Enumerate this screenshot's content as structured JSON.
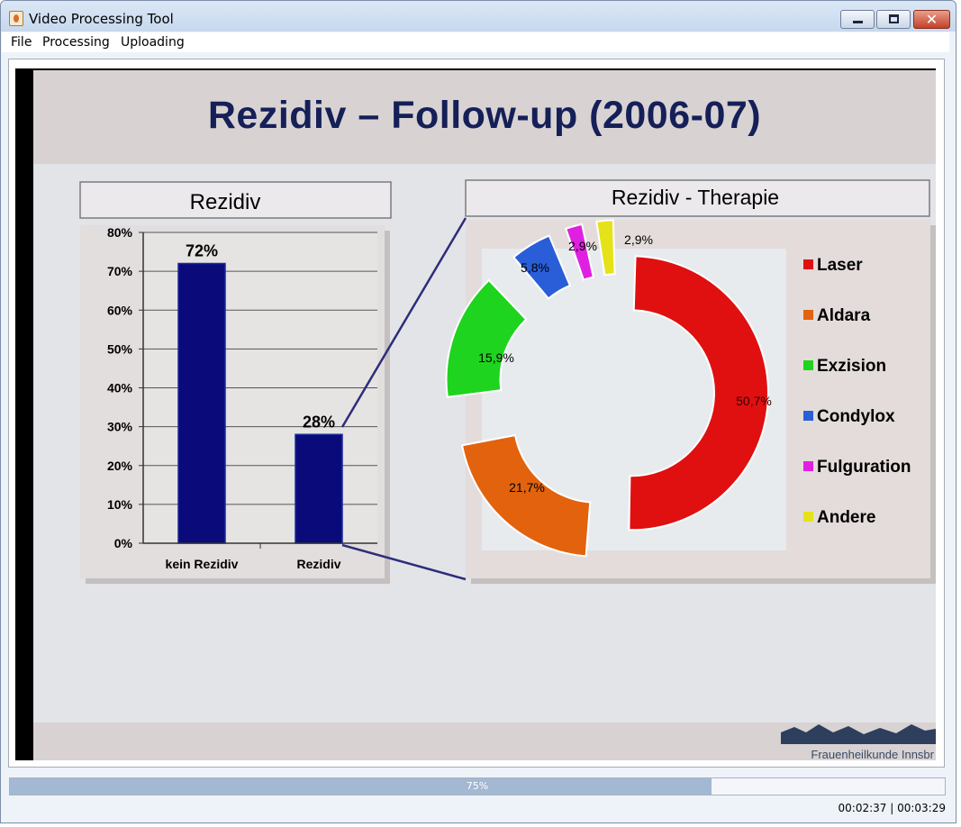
{
  "window": {
    "title": "Video Processing Tool"
  },
  "menu": [
    "File",
    "Processing",
    "Uploading"
  ],
  "slide": {
    "title": "Rezidiv – Follow-up (2006-07)",
    "footer": "Frauenheilkunde Innsbr"
  },
  "progress": {
    "value": 75,
    "label": "75%"
  },
  "time": {
    "text": "00:02:37 | 00:03:29"
  },
  "chart_data": [
    {
      "type": "bar",
      "title": "Rezidiv",
      "categories": [
        "kein Rezidiv",
        "Rezidiv"
      ],
      "values": [
        72,
        28
      ],
      "data_labels": [
        "72%",
        "28%"
      ],
      "ylim": [
        0,
        80
      ],
      "yticks": [
        "0%",
        "10%",
        "20%",
        "30%",
        "40%",
        "50%",
        "60%",
        "70%",
        "80%"
      ],
      "grid": true,
      "color": "#0a0a7a"
    },
    {
      "type": "pie",
      "title": "Rezidiv - Therapie",
      "donut": true,
      "legend": "right",
      "slices": [
        {
          "name": "Laser",
          "value": 50.7,
          "label": "50,7%",
          "color": "#e01010"
        },
        {
          "name": "Aldara",
          "value": 21.7,
          "label": "21,7%",
          "color": "#e2620e"
        },
        {
          "name": "Exzision",
          "value": 15.9,
          "label": "15,9%",
          "color": "#1ed41e"
        },
        {
          "name": "Condylox",
          "value": 5.8,
          "label": "5,8%",
          "color": "#2a5ed8"
        },
        {
          "name": "Fulguration",
          "value": 2.9,
          "label": "2,9%",
          "color": "#e020e0"
        },
        {
          "name": "Andere",
          "value": 2.9,
          "label": "2,9%",
          "color": "#e6e21a"
        }
      ]
    }
  ]
}
